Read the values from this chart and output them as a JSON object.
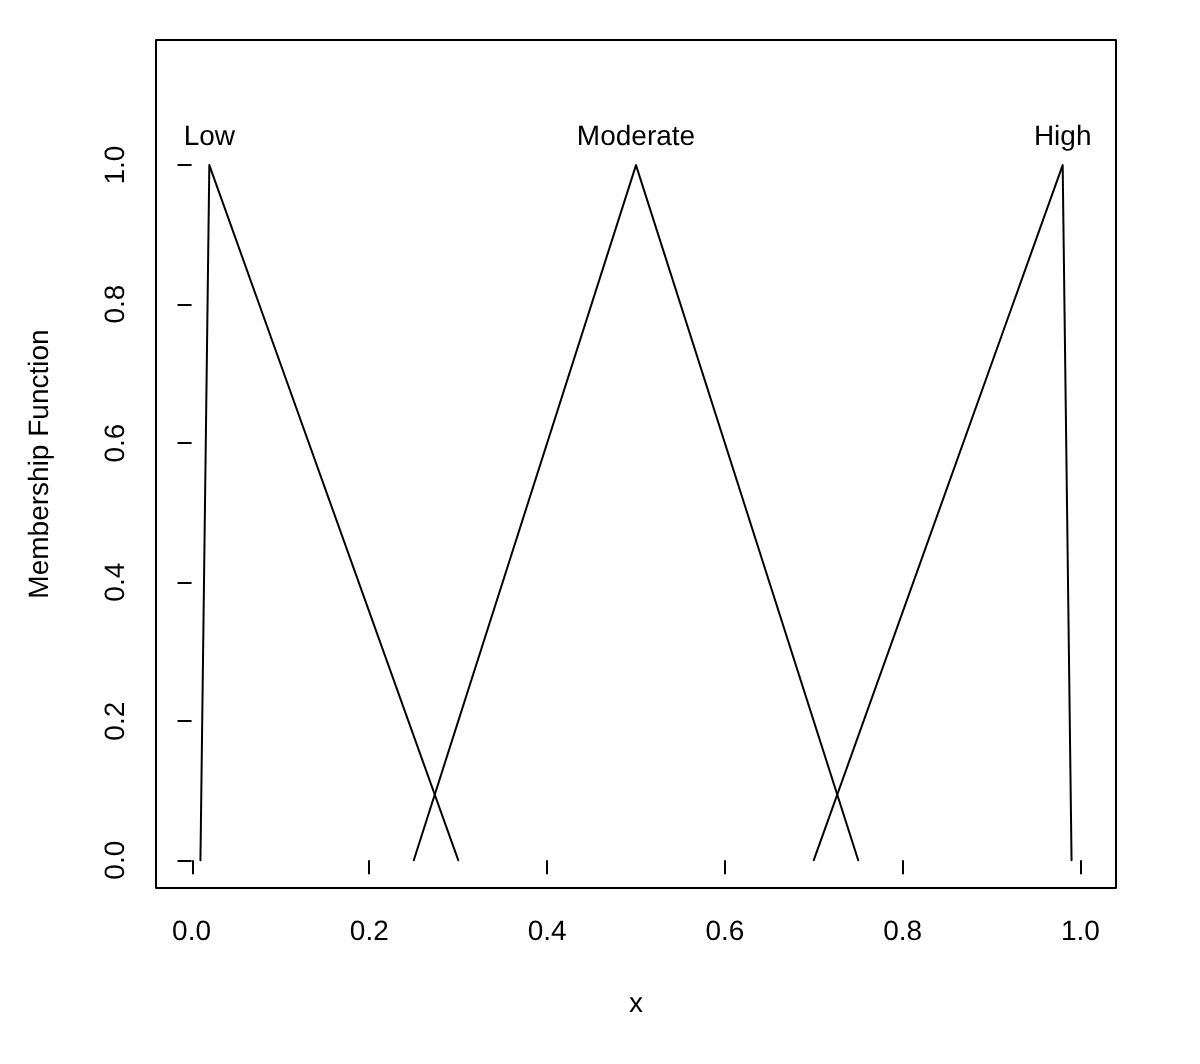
{
  "chart_data": {
    "type": "line",
    "xlabel": "x",
    "ylabel": "Membership Function",
    "xlim": [
      -0.04,
      1.04
    ],
    "ylim": [
      -0.04,
      1.18
    ],
    "xticks": [
      {
        "value": 0,
        "label": "0.0"
      },
      {
        "value": 0.2,
        "label": "0.2"
      },
      {
        "value": 0.4,
        "label": "0.4"
      },
      {
        "value": 0.6,
        "label": "0.6"
      },
      {
        "value": 0.8,
        "label": "0.8"
      },
      {
        "value": 1,
        "label": "1.0"
      }
    ],
    "yticks": [
      {
        "value": 0,
        "label": "0.0"
      },
      {
        "value": 0.2,
        "label": "0.2"
      },
      {
        "value": 0.4,
        "label": "0.4"
      },
      {
        "value": 0.6,
        "label": "0.6"
      },
      {
        "value": 0.8,
        "label": "0.8"
      },
      {
        "value": 1,
        "label": "1.0"
      }
    ],
    "grid": false,
    "marker": "none",
    "line_style": "solid",
    "series": [
      {
        "name": "Low",
        "color": "#000000",
        "x": [
          0.01,
          0.02,
          0.3
        ],
        "values": [
          0,
          1,
          0
        ]
      },
      {
        "name": "Moderate",
        "color": "#000000",
        "x": [
          0.25,
          0.5,
          0.75
        ],
        "values": [
          0,
          1,
          0
        ]
      },
      {
        "name": "High",
        "color": "#000000",
        "x": [
          0.7,
          0.98,
          0.99
        ],
        "values": [
          0,
          1,
          0
        ]
      }
    ]
  }
}
